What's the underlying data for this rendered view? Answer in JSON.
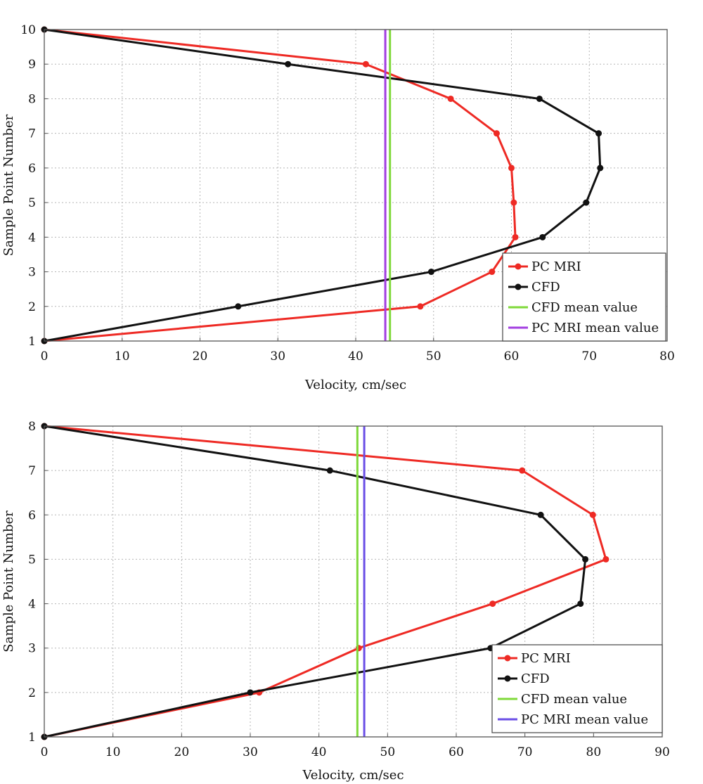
{
  "chart_data": [
    {
      "type": "line",
      "xlabel": "Velocity, cm/sec",
      "ylabel": "Sample Point Number",
      "xlim": [
        0,
        80
      ],
      "ylim": [
        1,
        10
      ],
      "xticks": [
        "0",
        "10",
        "20",
        "30",
        "40",
        "50",
        "60",
        "70",
        "80"
      ],
      "yticks": [
        "1",
        "2",
        "3",
        "4",
        "5",
        "6",
        "7",
        "8",
        "9",
        "10"
      ],
      "grid": true,
      "legend_position": "bottom-right",
      "series": [
        {
          "name": "PC MRI",
          "color": "#ee2a24",
          "points": [
            [
              0,
              1
            ],
            [
              48.3,
              2
            ],
            [
              57.5,
              3
            ],
            [
              60.5,
              4
            ],
            [
              60.3,
              5
            ],
            [
              60,
              6
            ],
            [
              58.1,
              7
            ],
            [
              52.2,
              8
            ],
            [
              41.3,
              9
            ],
            [
              0,
              10
            ]
          ]
        },
        {
          "name": "CFD",
          "color": "#111111",
          "points": [
            [
              0,
              1
            ],
            [
              24.9,
              2
            ],
            [
              49.7,
              3
            ],
            [
              64,
              4
            ],
            [
              69.6,
              5
            ],
            [
              71.4,
              6
            ],
            [
              71.2,
              7
            ],
            [
              63.6,
              8
            ],
            [
              31.3,
              9
            ],
            [
              0,
              10
            ]
          ]
        }
      ],
      "mean_lines": [
        {
          "name": "CFD mean value",
          "color": "#7fd93a",
          "x": 44.4
        },
        {
          "name": "PC MRI mean value",
          "color": "#a23ee0",
          "x": 43.8
        }
      ]
    },
    {
      "type": "line",
      "xlabel": "Velocity, cm/sec",
      "ylabel": "Sample Point Number",
      "xlim": [
        0,
        90
      ],
      "ylim": [
        1,
        8
      ],
      "xticks": [
        "0",
        "10",
        "20",
        "30",
        "40",
        "50",
        "60",
        "70",
        "80",
        "90"
      ],
      "yticks": [
        "1",
        "2",
        "3",
        "4",
        "5",
        "6",
        "7",
        "8"
      ],
      "grid": true,
      "legend_position": "bottom-right",
      "series": [
        {
          "name": "PC MRI",
          "color": "#ee2a24",
          "points": [
            [
              0,
              1
            ],
            [
              31.3,
              2
            ],
            [
              45.8,
              3
            ],
            [
              65.3,
              4
            ],
            [
              81.8,
              5
            ],
            [
              79.9,
              6
            ],
            [
              69.6,
              7
            ],
            [
              0,
              8
            ]
          ]
        },
        {
          "name": "CFD",
          "color": "#111111",
          "points": [
            [
              0,
              1
            ],
            [
              30,
              2
            ],
            [
              65,
              3
            ],
            [
              78.1,
              4
            ],
            [
              78.8,
              5
            ],
            [
              72.3,
              6
            ],
            [
              41.6,
              7
            ],
            [
              0,
              8
            ]
          ]
        }
      ],
      "mean_lines": [
        {
          "name": "CFD mean value",
          "color": "#7fd93a",
          "x": 45.6
        },
        {
          "name": "PC MRI mean value",
          "color": "#6a4ee6",
          "x": 46.6
        }
      ]
    }
  ]
}
